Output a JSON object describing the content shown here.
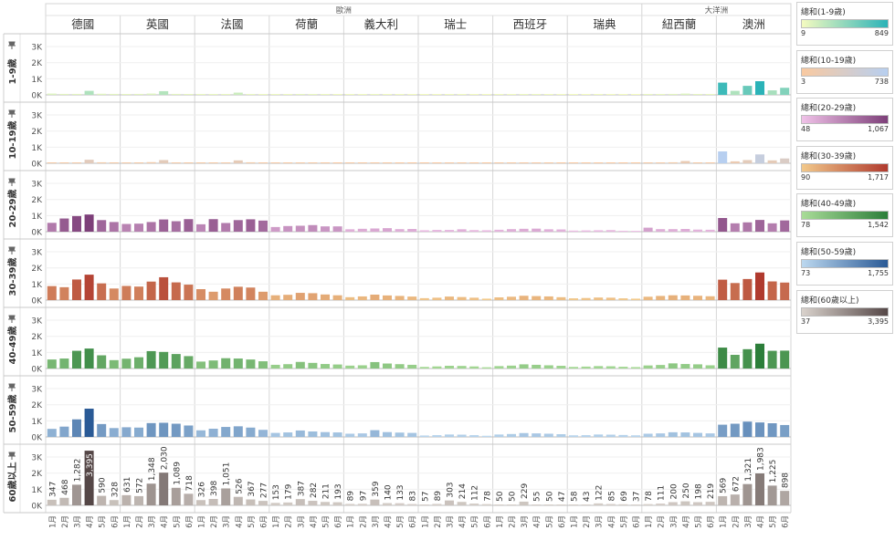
{
  "chart_data": {
    "type": "bar",
    "group_headers": [
      {
        "label": "歐洲",
        "countries": [
          0,
          1,
          2,
          3,
          4,
          5,
          6,
          7
        ]
      },
      {
        "label": "大洋洲",
        "countries": [
          8,
          9
        ]
      }
    ],
    "countries": [
      "德國",
      "英國",
      "法國",
      "荷蘭",
      "義大利",
      "瑞士",
      "西班牙",
      "瑞典",
      "紐西蘭",
      "澳洲"
    ],
    "months": [
      "1月",
      "2月",
      "3月",
      "4月",
      "5月",
      "6月"
    ],
    "y_ticks": [
      "0K",
      "1K",
      "2K",
      "3K"
    ],
    "ylim": [
      0,
      3400
    ],
    "row_header_icon": "pin-icon",
    "rows": [
      {
        "label": "1-9歲",
        "legend_title": "總和(1-9歲)",
        "legend_min": "9",
        "legend_max": "849",
        "color_low": "#f5fbc0",
        "color_high": "#2bb3b8",
        "values": [
          [
            80,
            60,
            60,
            250,
            70,
            60
          ],
          [
            50,
            60,
            80,
            230,
            60,
            50
          ],
          [
            40,
            40,
            40,
            140,
            40,
            30
          ],
          [
            30,
            30,
            50,
            40,
            30,
            20
          ],
          [
            20,
            20,
            30,
            20,
            20,
            15
          ],
          [
            15,
            15,
            20,
            20,
            15,
            10
          ],
          [
            20,
            20,
            30,
            30,
            20,
            15
          ],
          [
            10,
            10,
            20,
            15,
            10,
            9
          ],
          [
            40,
            40,
            60,
            80,
            50,
            40
          ],
          [
            760,
            250,
            560,
            849,
            280,
            440
          ]
        ]
      },
      {
        "label": "10-19歲",
        "legend_title": "總和(10-19歲)",
        "legend_min": "3",
        "legend_max": "738",
        "color_low": "#f9c9a0",
        "color_high": "#b7cff0",
        "values": [
          [
            40,
            40,
            50,
            220,
            60,
            40
          ],
          [
            50,
            40,
            70,
            200,
            50,
            40
          ],
          [
            40,
            40,
            50,
            180,
            60,
            30
          ],
          [
            30,
            20,
            40,
            40,
            20,
            10
          ],
          [
            20,
            20,
            20,
            20,
            10,
            10
          ],
          [
            10,
            10,
            30,
            20,
            10,
            3
          ],
          [
            20,
            20,
            30,
            30,
            20,
            10
          ],
          [
            10,
            10,
            10,
            10,
            10,
            5
          ],
          [
            40,
            50,
            60,
            140,
            40,
            30
          ],
          [
            738,
            120,
            200,
            550,
            180,
            300
          ]
        ]
      },
      {
        "label": "20-29歲",
        "legend_title": "總和(20-29歲)",
        "legend_min": "48",
        "legend_max": "1,067",
        "color_low": "#f0c2e8",
        "color_high": "#7d3f79",
        "values": [
          [
            550,
            820,
            970,
            1067,
            720,
            600
          ],
          [
            480,
            500,
            600,
            760,
            650,
            780
          ],
          [
            460,
            780,
            540,
            720,
            770,
            690
          ],
          [
            290,
            350,
            370,
            410,
            330,
            330
          ],
          [
            150,
            180,
            200,
            220,
            160,
            170
          ],
          [
            90,
            110,
            110,
            150,
            100,
            90
          ],
          [
            120,
            160,
            180,
            190,
            150,
            140
          ],
          [
            70,
            80,
            90,
            100,
            60,
            48
          ],
          [
            250,
            160,
            160,
            170,
            130,
            120
          ],
          [
            850,
            520,
            580,
            730,
            520,
            700
          ]
        ]
      },
      {
        "label": "30-39歲",
        "legend_title": "總和(30-39歲)",
        "legend_min": "90",
        "legend_max": "1,717",
        "color_low": "#f2c98b",
        "color_high": "#b03a2e",
        "values": [
          [
            870,
            800,
            1280,
            1580,
            1040,
            720
          ],
          [
            880,
            840,
            1150,
            1420,
            1100,
            960
          ],
          [
            680,
            520,
            720,
            830,
            780,
            520
          ],
          [
            300,
            330,
            450,
            430,
            350,
            300
          ],
          [
            180,
            230,
            340,
            290,
            260,
            220
          ],
          [
            120,
            150,
            220,
            190,
            150,
            90
          ],
          [
            170,
            210,
            270,
            250,
            230,
            180
          ],
          [
            110,
            130,
            160,
            150,
            110,
            90
          ],
          [
            210,
            260,
            300,
            290,
            270,
            240
          ],
          [
            1270,
            1060,
            1310,
            1717,
            1160,
            1090
          ]
        ]
      },
      {
        "label": "40-49歲",
        "legend_title": "總和(40-49歲)",
        "legend_min": "78",
        "legend_max": "1,542",
        "color_low": "#a9dc98",
        "color_high": "#2c7e3a",
        "values": [
          [
            560,
            620,
            1100,
            1240,
            820,
            520
          ],
          [
            610,
            700,
            1080,
            1030,
            900,
            770
          ],
          [
            430,
            500,
            640,
            620,
            560,
            450
          ],
          [
            230,
            270,
            410,
            350,
            280,
            250
          ],
          [
            180,
            200,
            400,
            310,
            270,
            230
          ],
          [
            100,
            130,
            170,
            160,
            130,
            78
          ],
          [
            150,
            180,
            260,
            230,
            200,
            170
          ],
          [
            100,
            120,
            150,
            140,
            110,
            90
          ],
          [
            190,
            220,
            320,
            280,
            260,
            200
          ],
          [
            1300,
            850,
            1200,
            1542,
            1100,
            1110
          ]
        ]
      },
      {
        "label": "50-59歲",
        "legend_title": "總和(50-59歲)",
        "legend_min": "73",
        "legend_max": "1,755",
        "color_low": "#bcd8ef",
        "color_high": "#2a5a96",
        "values": [
          [
            500,
            640,
            1090,
            1755,
            800,
            550
          ],
          [
            600,
            580,
            860,
            880,
            820,
            710
          ],
          [
            410,
            510,
            620,
            660,
            580,
            440
          ],
          [
            250,
            280,
            400,
            340,
            300,
            280
          ],
          [
            200,
            220,
            420,
            300,
            270,
            250
          ],
          [
            90,
            110,
            150,
            140,
            110,
            73
          ],
          [
            150,
            180,
            240,
            220,
            200,
            170
          ],
          [
            100,
            110,
            150,
            140,
            120,
            100
          ],
          [
            200,
            220,
            290,
            280,
            250,
            220
          ],
          [
            760,
            820,
            950,
            900,
            850,
            740
          ]
        ]
      },
      {
        "label": "60歲以上",
        "legend_title": "總和(60歲以上)",
        "legend_min": "37",
        "legend_max": "3,395",
        "color_low": "#d9d2cc",
        "color_high": "#554747",
        "values": [
          [
            347,
            468,
            1282,
            3395,
            590,
            328
          ],
          [
            631,
            572,
            1348,
            2030,
            1089,
            718
          ],
          [
            326,
            398,
            1051,
            526,
            367,
            277
          ],
          [
            153,
            179,
            387,
            282,
            211,
            193
          ],
          [
            89,
            97,
            359,
            140,
            133,
            83
          ],
          [
            57,
            89,
            303,
            214,
            112,
            78
          ],
          [
            50,
            50,
            229,
            55,
            50,
            47
          ],
          [
            58,
            43,
            122,
            85,
            69,
            37
          ],
          [
            78,
            111,
            200,
            250,
            198,
            219
          ],
          [
            569,
            672,
            1321,
            1983,
            1225,
            898
          ]
        ],
        "labels": [
          [
            "347",
            "468",
            "1,282",
            "3,395",
            "590",
            "328"
          ],
          [
            "631",
            "572",
            "1,348",
            "2,030",
            "1,089",
            "718"
          ],
          [
            "326",
            "398",
            "1,051",
            "526",
            "367",
            "277"
          ],
          [
            "153",
            "179",
            "387",
            "282",
            "211",
            "193"
          ],
          [
            "89",
            "97",
            "359",
            "140",
            "133",
            "83"
          ],
          [
            "57",
            "89",
            "303",
            "214",
            "112",
            "78"
          ],
          [
            "50",
            "50",
            "229",
            "55",
            "50",
            "47"
          ],
          [
            "58",
            "43",
            "122",
            "85",
            "69",
            "37"
          ],
          [
            "78",
            "111",
            "200",
            "250",
            "198",
            "219"
          ],
          [
            "569",
            "672",
            "1,321",
            "1,983",
            "1,225",
            "898"
          ]
        ]
      }
    ]
  }
}
